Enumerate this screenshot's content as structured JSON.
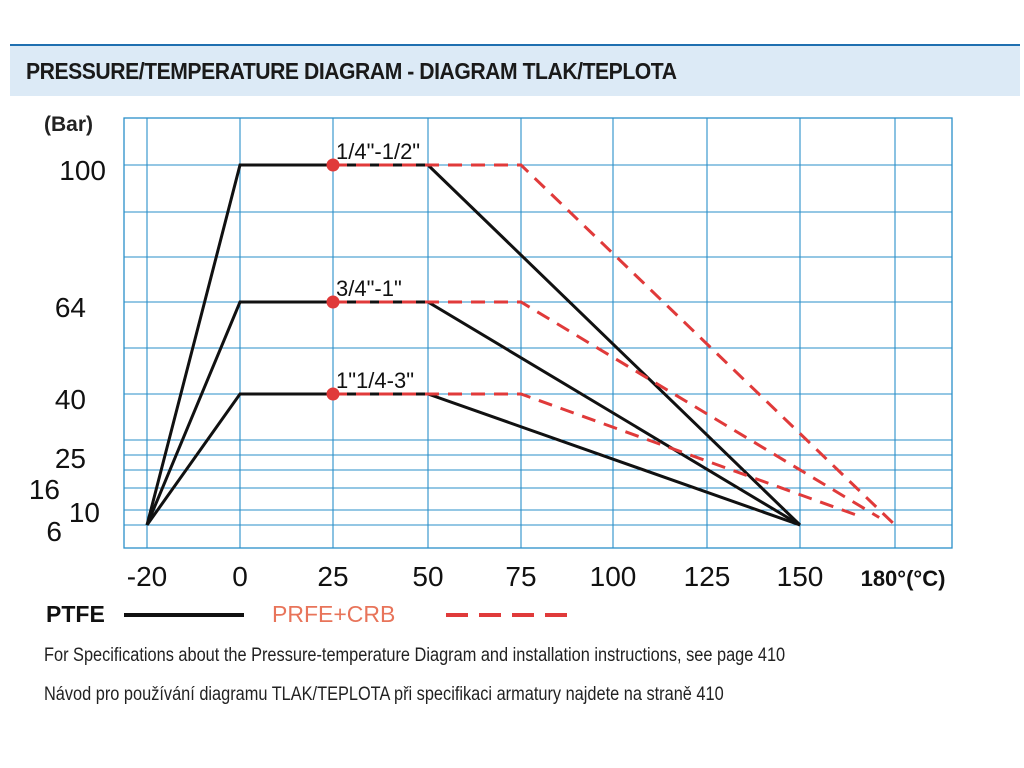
{
  "header": {
    "title": "PRESSURE/TEMPERATURE DIAGRAM  -  DIAGRAM TLAK/TEPLOTA"
  },
  "colors": {
    "grid": "#2a8fc9",
    "ptfe": "#111111",
    "prfe": "#e03a3a",
    "header_bg": "#dceaf6"
  },
  "chart_data": {
    "type": "line",
    "title": "PRESSURE/TEMPERATURE DIAGRAM  -  DIAGRAM TLAK/TEPLOTA",
    "ylabel": "(Bar)",
    "xlabel": "180°(°C)",
    "x_ticks": [
      -20,
      0,
      25,
      50,
      75,
      100,
      125,
      150
    ],
    "x_tick_labels": [
      "-20",
      "0",
      "25",
      "50",
      "75",
      "100",
      "125",
      "150"
    ],
    "y_ticks": [
      6,
      10,
      16,
      25,
      40,
      64,
      100
    ],
    "y_tick_labels": [
      "6",
      "10",
      "16",
      "25",
      "40",
      "64",
      "100"
    ],
    "grid": true,
    "legend": {
      "position": "bottom-left",
      "entries": [
        {
          "name": "PTFE",
          "style": "solid",
          "color": "#111111"
        },
        {
          "name": "PRFE+CRB",
          "style": "dashed",
          "color": "#e03a3a"
        }
      ]
    },
    "series": [
      {
        "group": "PTFE",
        "label": "1/4\"-1/2\"",
        "points": [
          [
            -20,
            6
          ],
          [
            0,
            100
          ],
          [
            50,
            100
          ],
          [
            150,
            6
          ]
        ]
      },
      {
        "group": "PTFE",
        "label": "3/4\"-1\"",
        "points": [
          [
            -20,
            6
          ],
          [
            0,
            64
          ],
          [
            50,
            64
          ],
          [
            150,
            6
          ]
        ]
      },
      {
        "group": "PTFE",
        "label": "1\"1/4-3\"",
        "points": [
          [
            -20,
            6
          ],
          [
            0,
            40
          ],
          [
            50,
            40
          ],
          [
            150,
            6
          ]
        ]
      },
      {
        "group": "PRFE+CRB",
        "label": "1/4\"-1/2\"",
        "points": [
          [
            25,
            100
          ],
          [
            75,
            100
          ],
          [
            180,
            6
          ]
        ]
      },
      {
        "group": "PRFE+CRB",
        "label": "3/4\"-1\"",
        "points": [
          [
            25,
            64
          ],
          [
            75,
            64
          ],
          [
            175,
            8
          ]
        ]
      },
      {
        "group": "PRFE+CRB",
        "label": "1\"1/4-3\"",
        "points": [
          [
            25,
            40
          ],
          [
            75,
            40
          ],
          [
            170,
            8
          ]
        ]
      }
    ],
    "markers": [
      {
        "x": 25,
        "y": 100
      },
      {
        "x": 25,
        "y": 64
      },
      {
        "x": 25,
        "y": 40
      }
    ]
  },
  "notes": [
    "For Specifications about the Pressure-temperature Diagram and installation instructions, see page 410",
    "Návod pro používání diagramu TLAK/TEPLOTA při specifikaci armatury najdete na straně 410"
  ]
}
